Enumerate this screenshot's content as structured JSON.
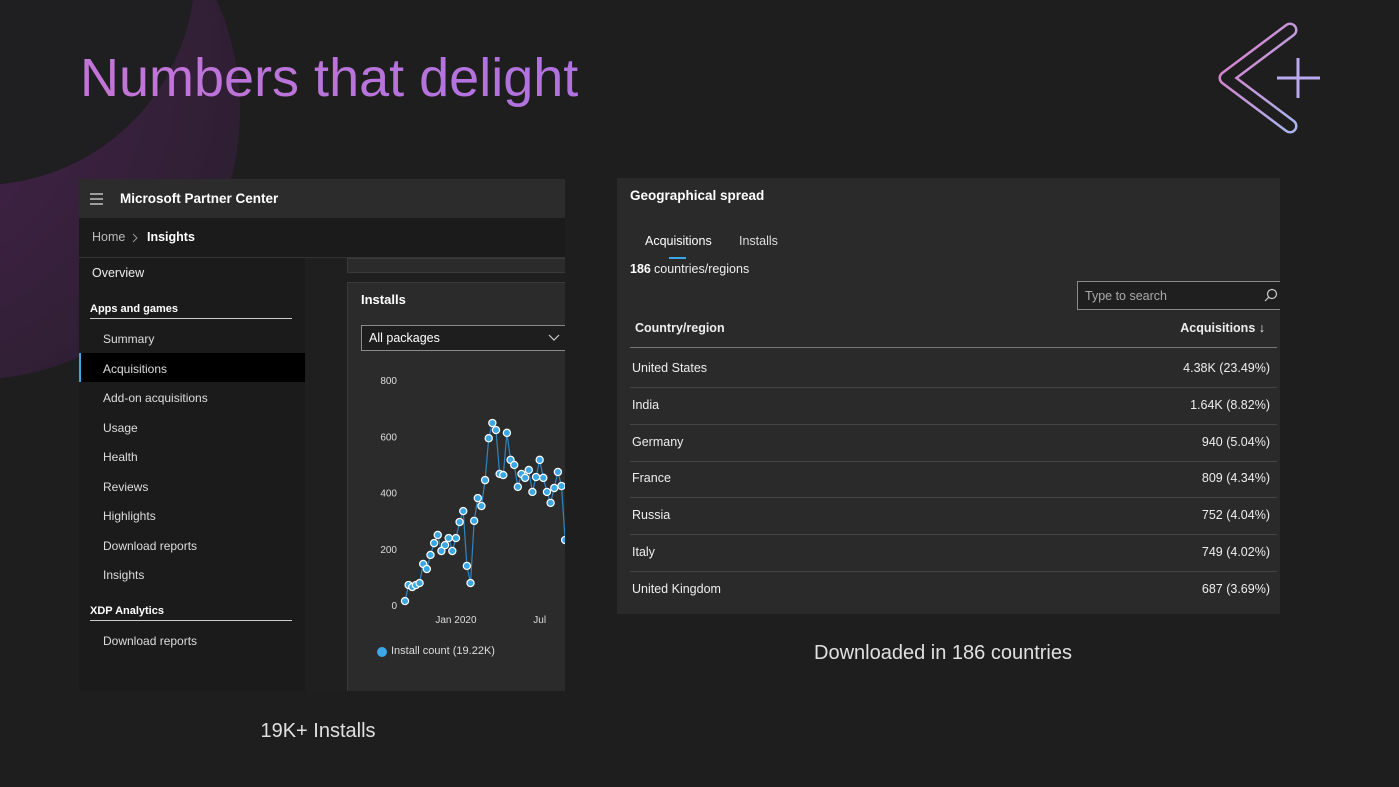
{
  "title": "Numbers that delight",
  "partner_center": {
    "app_title": "Microsoft Partner Center",
    "breadcrumb": [
      "Home",
      "Insights"
    ],
    "nav": {
      "overview": "Overview",
      "sections": [
        {
          "heading": "Apps and games",
          "items": [
            "Summary",
            "Acquisitions",
            "Add-on acquisitions",
            "Usage",
            "Health",
            "Reviews",
            "Highlights",
            "Download reports",
            "Insights"
          ]
        },
        {
          "heading": "XDP Analytics",
          "items": [
            "Download reports"
          ]
        }
      ]
    },
    "card_title": "Installs",
    "dropdown": "All packages"
  },
  "chart_data": {
    "type": "line",
    "categories": [
      null,
      null,
      null,
      null,
      null,
      null,
      null,
      null,
      null,
      null,
      null,
      null,
      null,
      null,
      "Jan 2020",
      null,
      null,
      null,
      null,
      null,
      null,
      null,
      null,
      null,
      null,
      null,
      null,
      null,
      null,
      null,
      null,
      null,
      null,
      null,
      null,
      null,
      null,
      "Jul",
      null,
      null,
      null,
      null,
      null,
      null,
      null
    ],
    "series": [
      {
        "name": "Install count (19.22K)",
        "color": "#3ba7e4",
        "values": [
          14,
          71,
          64,
          71,
          78,
          146,
          128,
          178,
          220,
          249,
          192,
          213,
          238,
          192,
          238,
          295,
          334,
          139,
          78,
          299,
          380,
          352,
          444,
          593,
          647,
          622,
          466,
          462,
          612,
          516,
          498,
          420,
          466,
          452,
          480,
          402,
          455,
          516,
          452,
          402,
          363,
          416,
          473,
          423,
          231
        ]
      }
    ],
    "ylim": [
      0,
      800
    ],
    "yticks": [
      0,
      200,
      400,
      600,
      800
    ]
  },
  "geo": {
    "title": "Geographical spread",
    "tabs": [
      "Acquisitions",
      "Installs"
    ],
    "count": "186",
    "count_label": "countries/regions",
    "search_placeholder": "Type to search",
    "header": [
      "Country/region",
      "Acquisitions ↓"
    ],
    "rows": [
      [
        "United States",
        "4.38K (23.49%)"
      ],
      [
        "India",
        "1.64K (8.82%)"
      ],
      [
        "Germany",
        "940 (5.04%)"
      ],
      [
        "France",
        "809 (4.34%)"
      ],
      [
        "Russia",
        "752 (4.04%)"
      ],
      [
        "Italy",
        "749 (4.02%)"
      ],
      [
        "United Kingdom",
        "687 (3.69%)"
      ]
    ]
  },
  "captions": [
    "19K+ Installs",
    "Downloaded in 186 countries"
  ]
}
